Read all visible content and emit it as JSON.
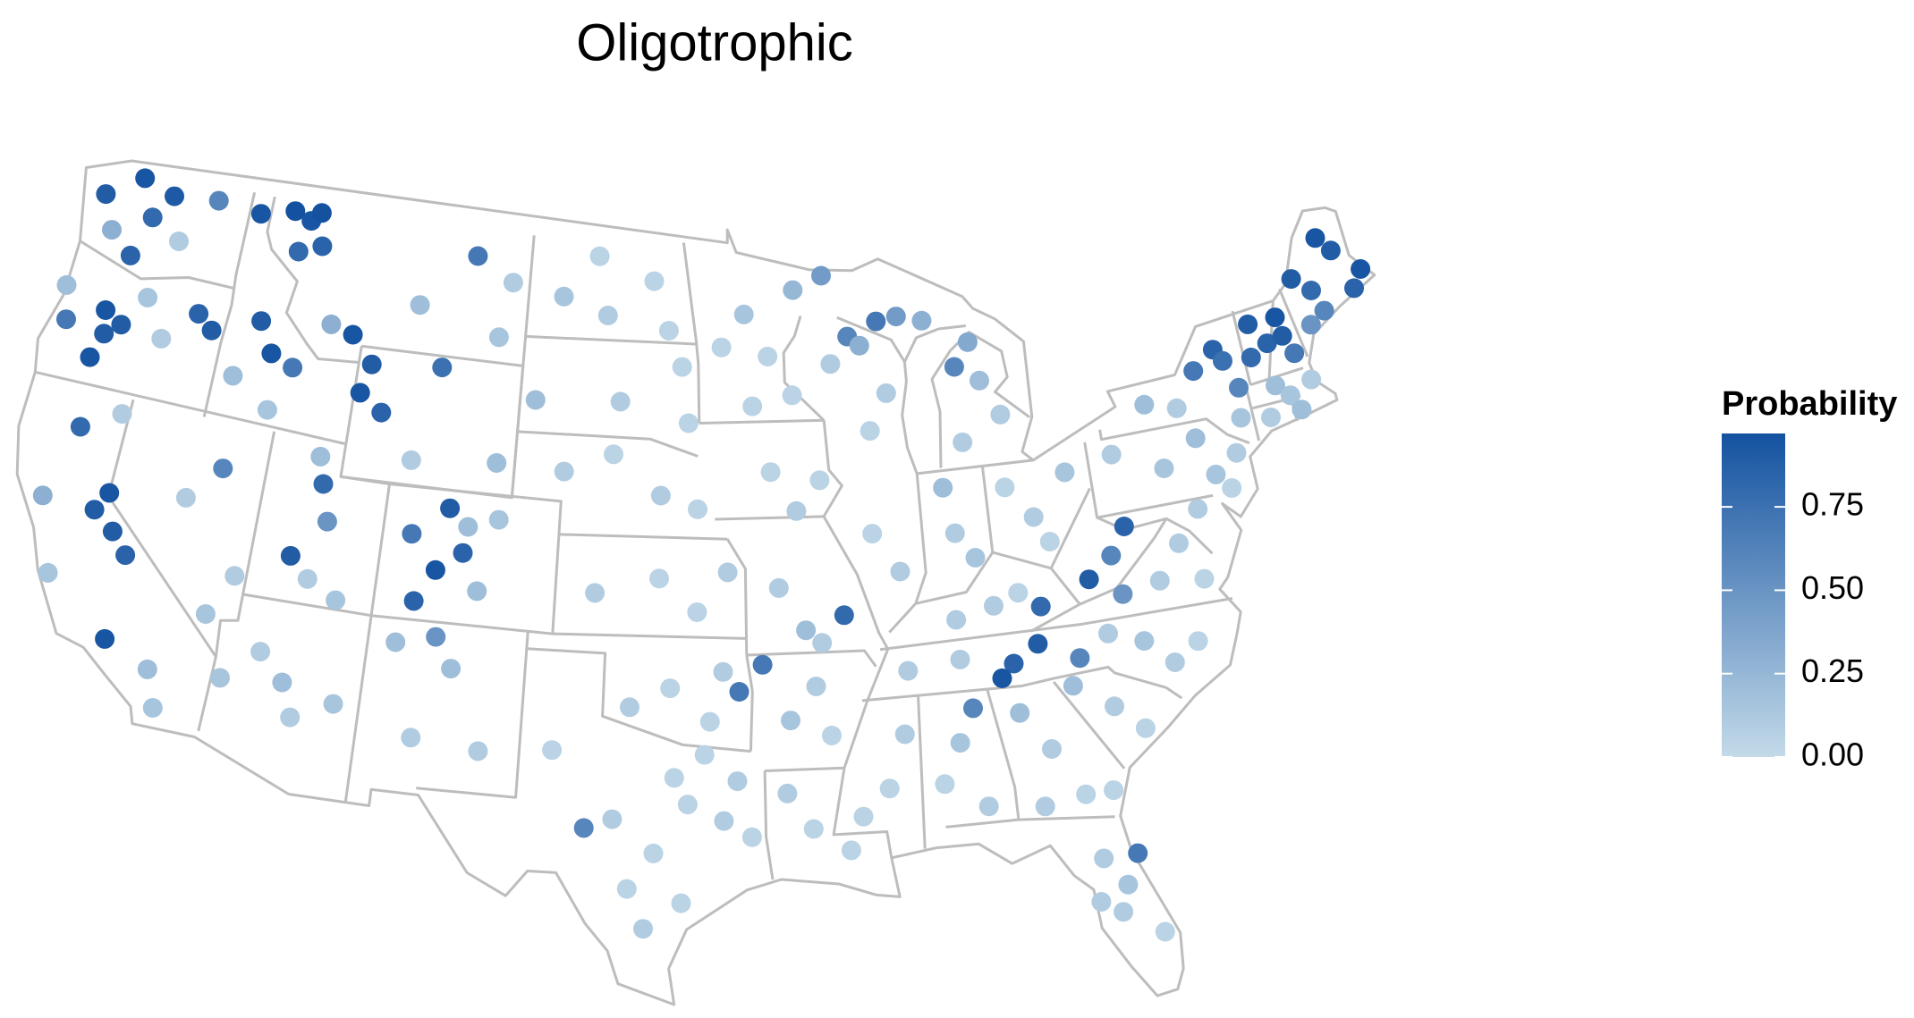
{
  "chart_data": {
    "type": "scatter",
    "title": "Oligotrophic",
    "legend_title": "Probability",
    "color_low": "#c3dae9",
    "color_high": "#1452a0",
    "clim": [
      0,
      0.97
    ],
    "cticks": [
      {
        "value": 0,
        "label": "0.00"
      },
      {
        "value": 0.25,
        "label": "0.25"
      },
      {
        "value": 0.5,
        "label": "0.50"
      },
      {
        "value": 0.75,
        "label": "0.75"
      }
    ],
    "x": [
      -123.5,
      -122.0,
      -121.2,
      -120.5,
      -118.5,
      -119.8,
      -122.8,
      -121.7,
      -122.1,
      -121.9,
      -122.2,
      -121.3,
      -123.6,
      -124.0,
      -120.5,
      -118.2,
      -117.5,
      -119.5,
      -116.5,
      -115.0,
      -114.2,
      -113.8,
      -114.5,
      -113.5,
      -115.5,
      -114.8,
      -113.8,
      -116.2,
      -114.5,
      -112.5,
      -111.5,
      -110.5,
      -109.8,
      -110.8,
      -106.5,
      -108.8,
      -104.8,
      -107.5,
      -105.2,
      -121.8,
      -120.0,
      -119.5,
      -118.8,
      -120.4,
      -122.5,
      -121.5,
      -118.8,
      -117.0,
      -116.5,
      -120.3,
      -117.0,
      -115.8,
      -114.5,
      -115.3,
      -111.7,
      -112.0,
      -111.3,
      -110.5,
      -112.5,
      -111.7,
      -106.5,
      -105.7,
      -105.8,
      -106.8,
      -107.5,
      -105.1,
      -104.5,
      -107.9,
      -108.3,
      -104.8,
      -112.0,
      -111.5,
      -110.0,
      -113.0,
      -114.3,
      -106.5,
      -105.8,
      -107.0,
      -104.5,
      -108.0,
      -101.0,
      -98.5,
      -100.5,
      -97.8,
      -102.5,
      -97.2,
      -99.8,
      -103.4,
      -96.9,
      -100.0,
      -98.0,
      -96.5,
      -102.0,
      -98.0,
      -96.5,
      -95.3,
      -100.5,
      -97.5,
      -95.5,
      -96.0,
      -99.0,
      -94.9,
      -97.3,
      -96.8,
      -95.5,
      -94.5,
      -98.0,
      -99.5,
      -100.5,
      -97.0,
      -98.3,
      -101.8,
      -95.0,
      -96.2,
      -98.9,
      -94.5,
      -93.5,
      -95.5,
      -92.3,
      -91.0,
      -90.0,
      -89.5,
      -90.8,
      -88.7,
      -87.8,
      -86.7,
      -85.5,
      -84.5,
      -83.8,
      -85.5,
      -84.8,
      -89.3,
      -88.5,
      -92.5,
      -94.2,
      -93.5,
      -91.5,
      -92.5,
      -93.3,
      -92.3,
      -90.8,
      -91.7,
      -89.5,
      -88.5,
      -86.2,
      -86.5,
      -85.5,
      -83.0,
      -81.5,
      -82.5,
      -84.0,
      -93.0,
      -92.0,
      -91.5,
      -94.0,
      -92.3,
      -91.0,
      -93.2,
      -89.5,
      -88.8,
      -90.5,
      -86.8,
      -87.5,
      -86.0,
      -86.2,
      -86.5,
      -84.5,
      -85.0,
      -88.5,
      -83.5,
      -85.0,
      -84.0,
      -86.5,
      -83.2,
      -84.5,
      -83.5,
      -82.5,
      -84.0,
      -81.5,
      -82.2,
      -81.5,
      -81.8,
      -81.0,
      -82.5,
      -80.5,
      -81.0,
      -80.0,
      -82.4,
      -79.5,
      -78.5,
      -82.0,
      -77.5,
      -80.8,
      -80.0,
      -78.5,
      -77.5,
      -80.2,
      -81.2,
      -79.5,
      -76.8,
      -77.5,
      -76.0,
      -79.5,
      -75.5,
      -76.5,
      -74.5,
      -74.2,
      -75.5,
      -76.5,
      -74.0,
      -73.8,
      -77.8,
      -72.8,
      -73.0,
      -72.2,
      -71.5,
      -71.6,
      -71.2,
      -72.3,
      -71.8,
      -72.8,
      -71.5,
      -70.8,
      -70.2,
      -69.8,
      -69.0,
      -68.5,
      -68.0,
      -69.5,
      -70.5,
      -67.5,
      -74.5,
      -75.0
    ],
    "y": [
      47.8,
      48.6,
      47.5,
      48.3,
      48.5,
      47.0,
      46.8,
      46.2,
      44.4,
      43.7,
      42.9,
      44.1,
      43.8,
      44.8,
      45.1,
      45.0,
      44.6,
      44.0,
      48.4,
      48.7,
      48.5,
      48.8,
      47.5,
      47.8,
      45.2,
      44.3,
      44.0,
      43.4,
      42.6,
      45.5,
      45.3,
      44.5,
      43.1,
      43.6,
      48.2,
      46.5,
      47.5,
      44.7,
      45.8,
      40.8,
      39.1,
      38.0,
      37.4,
      38.5,
      38.5,
      36.3,
      34.8,
      34.2,
      33.1,
      41.5,
      39.5,
      40.6,
      37.5,
      36.2,
      40.7,
      41.5,
      39.6,
      37.3,
      38.4,
      37.8,
      40.5,
      40.0,
      39.2,
      38.6,
      37.6,
      38.1,
      40.3,
      39.6,
      41.8,
      42.0,
      34.6,
      33.6,
      34.2,
      35.4,
      34.4,
      36.6,
      35.7,
      33.5,
      33.3,
      36.3,
      48.5,
      47.8,
      46.7,
      46.3,
      47.2,
      45.2,
      44.1,
      44.0,
      43.5,
      42.5,
      41.3,
      40.9,
      41.9,
      38.8,
      37.8,
      39.0,
      38.3,
      35.5,
      36.0,
      34.5,
      34.9,
      35.4,
      32.8,
      32.0,
      31.5,
      31.0,
      30.5,
      31.5,
      31.2,
      29.0,
      28.2,
      33.5,
      32.7,
      33.5,
      29.4,
      46.8,
      45.5,
      45.8,
      47.5,
      47.9,
      46.0,
      45.7,
      45.2,
      46.4,
      46.5,
      46.3,
      44.8,
      44.3,
      43.2,
      42.5,
      45.5,
      43.1,
      44.2,
      44.3,
      44.0,
      42.0,
      41.7,
      40.8,
      38.5,
      37.2,
      37.6,
      36.8,
      40.0,
      38.8,
      39.8,
      41.2,
      39.0,
      40.0,
      41.2,
      39.2,
      41.0,
      34.5,
      35.5,
      34.0,
      36.2,
      31.2,
      30.5,
      32.3,
      32.3,
      33.9,
      31.5,
      33.5,
      32.3,
      31.5,
      34.5,
      36.0,
      35.7,
      35.3,
      35.8,
      36.2,
      37.5,
      37.8,
      37.2,
      37.3,
      34.2,
      33.0,
      31.5,
      31.3,
      31.5,
      29.5,
      28.6,
      27.8,
      29.5,
      28.2,
      27.0,
      34.0,
      33.2,
      34.8,
      35.8,
      35.0,
      35.6,
      35.5,
      36.2,
      37.3,
      37.5,
      38.5,
      38.5,
      37.9,
      39.3,
      37.3,
      40.8,
      41.5,
      41.5,
      40.3,
      39.4,
      44.0,
      43.6,
      43.5,
      42.5,
      41.8,
      42.7,
      42.8,
      44.5,
      43.5,
      43.8,
      43.9,
      44.5,
      43.3,
      42.5,
      42.1,
      41.6,
      41.6,
      42.4,
      44.0,
      45.0,
      46.5,
      46.0,
      44.7,
      44.3,
      45.5,
      45.2,
      40.8,
      39.8
    ],
    "values": [
      0.9,
      0.95,
      0.8,
      0.92,
      0.6,
      0.1,
      0.3,
      0.85,
      0.95,
      0.9,
      0.95,
      0.9,
      0.7,
      0.2,
      0.15,
      0.85,
      0.9,
      0.1,
      0.95,
      0.97,
      0.95,
      0.97,
      0.8,
      0.85,
      0.9,
      0.95,
      0.7,
      0.2,
      0.15,
      0.3,
      0.95,
      0.9,
      0.85,
      0.95,
      0.7,
      0.2,
      0.1,
      0.75,
      0.15,
      0.8,
      0.95,
      0.9,
      0.85,
      0.9,
      0.3,
      0.15,
      0.95,
      0.2,
      0.15,
      0.1,
      0.1,
      0.6,
      0.1,
      0.15,
      0.8,
      0.2,
      0.5,
      0.15,
      0.9,
      0.1,
      0.9,
      0.2,
      0.85,
      0.95,
      0.85,
      0.2,
      0.15,
      0.7,
      0.1,
      0.2,
      0.2,
      0.1,
      0.15,
      0.1,
      0.15,
      0.5,
      0.2,
      0.1,
      0.1,
      0.2,
      0.05,
      0.05,
      0.1,
      0.05,
      0.15,
      0.05,
      0.1,
      0.2,
      0.05,
      0.05,
      0.1,
      0.05,
      0.1,
      0.05,
      0.05,
      0.1,
      0.1,
      0.05,
      0.1,
      0.05,
      0.1,
      0.7,
      0.05,
      0.05,
      0.1,
      0.05,
      0.05,
      0.1,
      0.6,
      0.05,
      0.1,
      0.05,
      0.1,
      0.05,
      0.05,
      0.15,
      0.05,
      0.05,
      0.25,
      0.45,
      0.6,
      0.3,
      0.1,
      0.7,
      0.45,
      0.3,
      0.6,
      0.2,
      0.1,
      0.1,
      0.35,
      0.05,
      0.1,
      0.05,
      0.05,
      0.05,
      0.05,
      0.1,
      0.1,
      0.2,
      0.8,
      0.1,
      0.05,
      0.1,
      0.1,
      0.2,
      0.15,
      0.1,
      0.15,
      0.05,
      0.05,
      0.15,
      0.1,
      0.05,
      0.7,
      0.05,
      0.05,
      0.1,
      0.05,
      0.1,
      0.05,
      0.15,
      0.05,
      0.1,
      0.6,
      0.1,
      0.85,
      0.95,
      0.1,
      0.9,
      0.1,
      0.05,
      0.1,
      0.8,
      0.2,
      0.1,
      0.05,
      0.1,
      0.05,
      0.1,
      0.15,
      0.1,
      0.7,
      0.1,
      0.05,
      0.1,
      0.05,
      0.2,
      0.15,
      0.1,
      0.6,
      0.05,
      0.1,
      0.5,
      0.1,
      0.1,
      0.6,
      0.9,
      0.85,
      0.05,
      0.15,
      0.2,
      0.1,
      0.15,
      0.1,
      0.85,
      0.75,
      0.7,
      0.1,
      0.15,
      0.6,
      0.2,
      0.9,
      0.8,
      0.85,
      0.9,
      0.95,
      0.7,
      0.2,
      0.15,
      0.1,
      0.2,
      0.1,
      0.5,
      0.8,
      0.95,
      0.9,
      0.85,
      0.6,
      0.9,
      0.95,
      0.1,
      0.05
    ]
  }
}
